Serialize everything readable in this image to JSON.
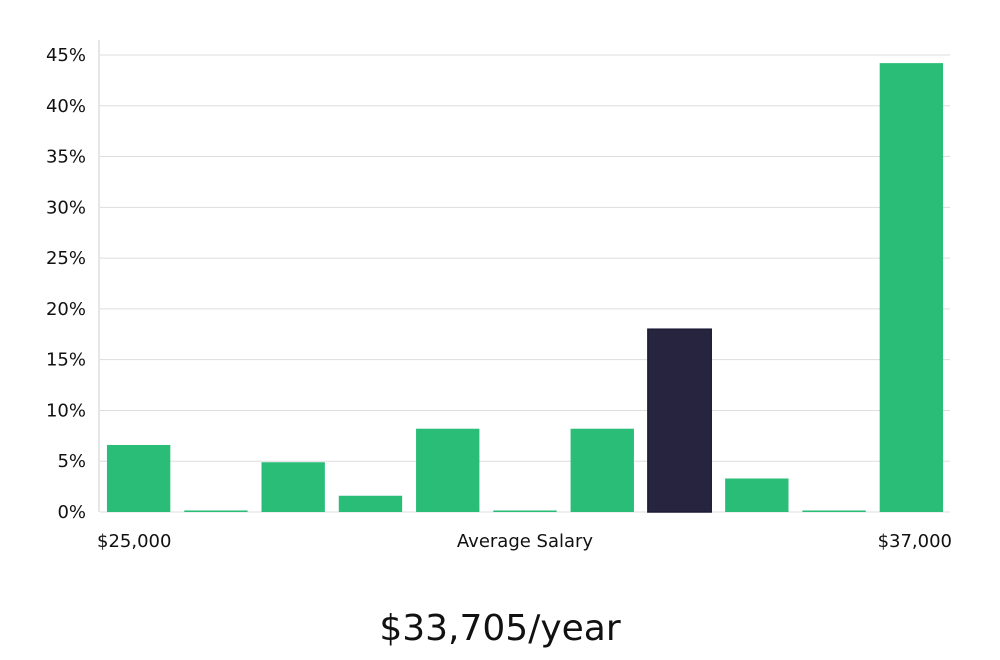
{
  "chart_data": {
    "type": "bar",
    "bin_count": 11,
    "values": [
      6.6,
      0.15,
      4.9,
      1.6,
      8.2,
      0.15,
      8.2,
      18.0,
      3.3,
      0.15,
      44.2
    ],
    "highlight_index": 7,
    "ylim": [
      0,
      45
    ],
    "ytick_step": 5,
    "ytick_suffix": "%",
    "xlabel": "Average Salary",
    "x_min_label": "$25,000",
    "x_max_label": "$37,000",
    "grid": true,
    "colors": {
      "bar": "#2abd78",
      "highlight": "#27243f",
      "grid": "#dddddd",
      "axis": "#cccccc"
    }
  },
  "summary": {
    "salary_text": "$33,705/year"
  }
}
